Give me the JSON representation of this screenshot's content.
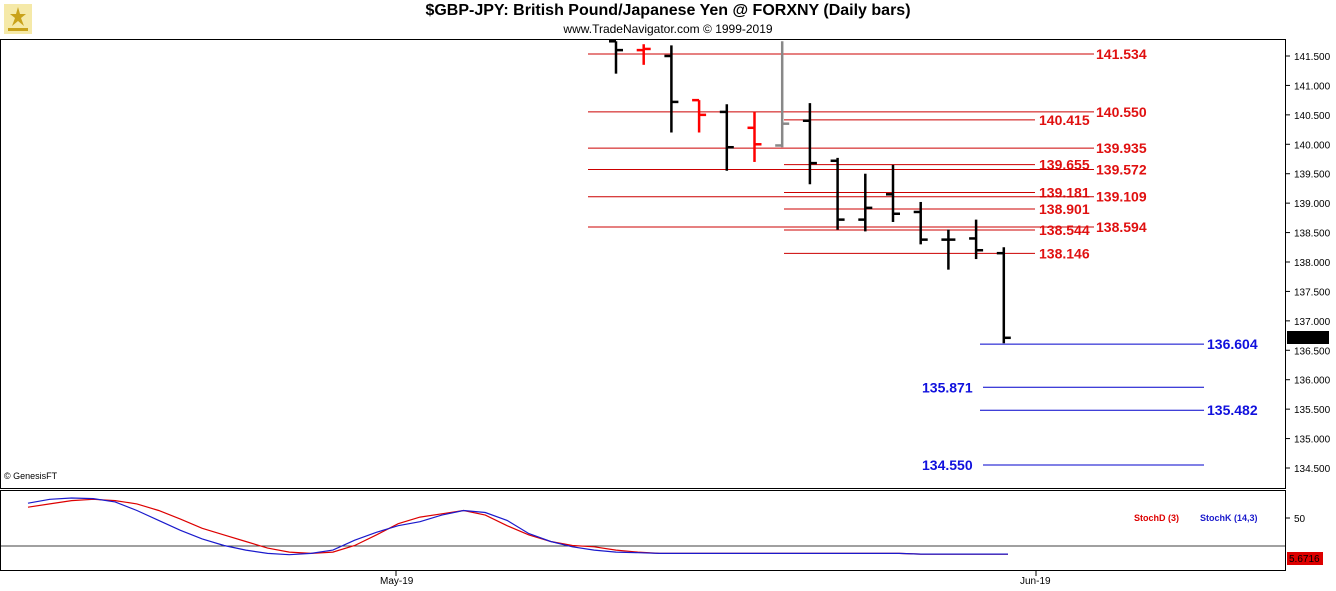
{
  "header": {
    "title": "$GBP-JPY:  British Pound/Japanese Yen @ FORXNY  (Daily bars)",
    "subtitle": "www.TradeNavigator.com © 1999-2019"
  },
  "copyright": "© GenesisFT",
  "colors": {
    "bull": "#ff0000",
    "bear": "#000000",
    "neutral": "#888888",
    "red_level": "#cc0000",
    "blue_level": "#0000cc",
    "stochD": "#dd0000",
    "stochK": "#1a1acc"
  },
  "chart_data": [
    {
      "type": "ohlc",
      "title": "$GBP-JPY:  British Pound/Japanese Yen @ FORXNY  (Daily bars)",
      "ylim": [
        134.3,
        141.75
      ],
      "y_ticks": [
        "141.500",
        "141.000",
        "140.500",
        "140.000",
        "139.500",
        "139.000",
        "138.500",
        "138.000",
        "137.500",
        "137.000",
        "136.500",
        "136.000",
        "135.500",
        "135.000",
        "134.500"
      ],
      "x_labels": [
        "May-19",
        "Jun-19"
      ],
      "last_price": "136.712",
      "bars": [
        {
          "dir": "down",
          "o": 141.75,
          "h": 141.75,
          "l": 141.2,
          "c": 141.6
        },
        {
          "dir": "up",
          "o": 141.6,
          "h": 141.7,
          "l": 141.35,
          "c": 141.62
        },
        {
          "dir": "down",
          "o": 141.5,
          "h": 141.68,
          "l": 140.2,
          "c": 140.72
        },
        {
          "dir": "up",
          "o": 140.75,
          "h": 140.75,
          "l": 140.2,
          "c": 140.5
        },
        {
          "dir": "down",
          "o": 140.55,
          "h": 140.68,
          "l": 139.55,
          "c": 139.95
        },
        {
          "dir": "up",
          "o": 140.28,
          "h": 140.55,
          "l": 139.7,
          "c": 140.0
        },
        {
          "dir": "flat",
          "o": 139.98,
          "h": 141.75,
          "l": 139.95,
          "c": 140.35
        },
        {
          "dir": "down",
          "o": 140.4,
          "h": 140.7,
          "l": 139.32,
          "c": 139.68
        },
        {
          "dir": "down",
          "o": 139.72,
          "h": 139.77,
          "l": 138.55,
          "c": 138.72
        },
        {
          "dir": "down",
          "o": 138.72,
          "h": 139.5,
          "l": 138.52,
          "c": 138.92
        },
        {
          "dir": "down",
          "o": 139.15,
          "h": 139.65,
          "l": 138.68,
          "c": 138.82
        },
        {
          "dir": "down",
          "o": 138.85,
          "h": 139.02,
          "l": 138.3,
          "c": 138.38
        },
        {
          "dir": "down",
          "o": 138.38,
          "h": 138.55,
          "l": 137.87,
          "c": 138.38
        },
        {
          "dir": "down",
          "o": 138.4,
          "h": 138.72,
          "l": 138.05,
          "c": 138.2
        },
        {
          "dir": "down",
          "o": 138.15,
          "h": 138.25,
          "l": 136.62,
          "c": 136.712
        }
      ],
      "red_levels": [
        {
          "value": "141.534",
          "side": "right"
        },
        {
          "value": "140.550",
          "side": "right"
        },
        {
          "value": "140.415",
          "side": "left"
        },
        {
          "value": "139.935",
          "side": "right"
        },
        {
          "value": "139.655",
          "side": "left"
        },
        {
          "value": "139.572",
          "side": "right"
        },
        {
          "value": "139.181",
          "side": "left"
        },
        {
          "value": "139.109",
          "side": "right"
        },
        {
          "value": "138.901",
          "side": "left"
        },
        {
          "value": "138.594",
          "side": "right"
        },
        {
          "value": "138.544",
          "side": "left"
        },
        {
          "value": "138.146",
          "side": "left"
        }
      ],
      "blue_levels": [
        {
          "value": "136.604",
          "side": "right"
        },
        {
          "value": "135.871",
          "side": "left"
        },
        {
          "value": "135.482",
          "side": "right"
        },
        {
          "value": "134.550",
          "side": "left"
        }
      ]
    },
    {
      "type": "line",
      "ylim": [
        0,
        100
      ],
      "y_ticks": [
        "50"
      ],
      "last_value": "5.6716",
      "series": [
        {
          "name": "StochD (3)",
          "values": [
            80,
            85,
            90,
            92,
            90,
            85,
            75,
            62,
            48,
            38,
            28,
            18,
            12,
            10,
            12,
            22,
            38,
            55,
            65,
            70,
            75,
            68,
            52,
            38,
            28,
            22,
            20,
            15,
            12,
            10,
            10,
            10,
            10,
            10,
            10,
            10,
            10,
            10,
            10,
            10,
            10,
            9,
            9,
            9,
            9,
            9
          ]
        },
        {
          "name": "StochK (14,3)",
          "values": [
            86,
            92,
            94,
            93,
            88,
            75,
            60,
            45,
            32,
            22,
            15,
            10,
            8,
            10,
            15,
            30,
            42,
            52,
            58,
            68,
            75,
            72,
            60,
            40,
            28,
            20,
            15,
            12,
            11,
            10,
            10,
            10,
            10,
            10,
            10,
            10,
            10,
            10,
            10,
            10,
            10,
            9,
            9,
            9,
            9,
            9
          ]
        }
      ]
    }
  ]
}
